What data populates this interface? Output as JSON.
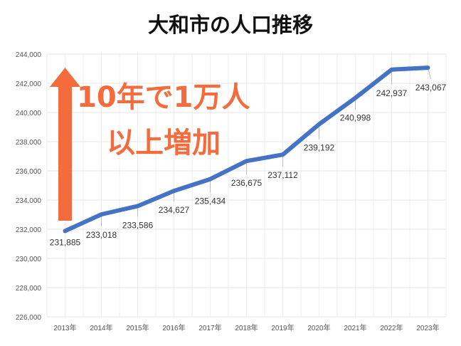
{
  "chart_data": {
    "type": "line",
    "title": "大和市の人口推移",
    "xlabel": "",
    "ylabel": "",
    "categories": [
      "2013年",
      "2014年",
      "2015年",
      "2016年",
      "2017年",
      "2018年",
      "2019年",
      "2020年",
      "2021年",
      "2022年",
      "2023年"
    ],
    "series": [
      {
        "name": "人口",
        "values": [
          231885,
          233018,
          233586,
          234627,
          235434,
          236675,
          237112,
          239192,
          240998,
          242937,
          243067
        ],
        "color": "#4472C4"
      }
    ],
    "data_labels": [
      "231,885",
      "233,018",
      "233,586",
      "234,627",
      "235,434",
      "236,675",
      "237,112",
      "239,192",
      "240,998",
      "242,937",
      "243,067"
    ],
    "ylim": [
      226000,
      244000
    ],
    "yticks": [
      226000,
      228000,
      230000,
      232000,
      234000,
      236000,
      238000,
      240000,
      242000,
      244000
    ],
    "ytick_labels": [
      "226,000",
      "228,000",
      "230,000",
      "232,000",
      "234,000",
      "236,000",
      "238,000",
      "240,000",
      "242,000",
      "244,000"
    ],
    "grid": true,
    "legend": "none",
    "annotations": {
      "line1": "10年で1万人",
      "line2": "以上増加",
      "color": "#F46C3E"
    }
  }
}
